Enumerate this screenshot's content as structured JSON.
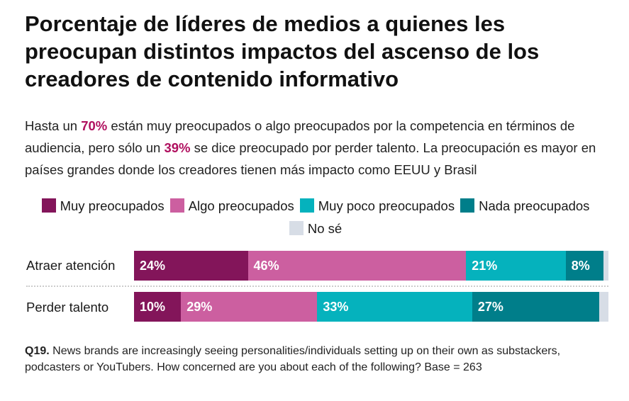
{
  "chart_data": {
    "type": "bar",
    "orientation": "horizontal",
    "stacked": true,
    "title": "Porcentaje de líderes de medios a quienes les preocupan distintos impactos del ascenso de los creadores de contenido informativo",
    "subtitle": {
      "p1": "Hasta un ",
      "h1": "70%",
      "p2": " están muy preocupados o algo preocupados por la competencia en términos de audiencia, pero sólo un ",
      "h2": "39%",
      "p3": " se dice preocupado por perder talento. La preocupación es mayor en países grandes donde los creadores tienen más impacto como EEUU y Brasil"
    },
    "categories": [
      "Atraer atención",
      "Perder talento"
    ],
    "series": [
      {
        "name": "Muy preocupados",
        "color": "#83155a",
        "values": [
          24,
          10
        ]
      },
      {
        "name": "Algo preocupados",
        "color": "#cc5fa0",
        "values": [
          46,
          29
        ]
      },
      {
        "name": "Muy poco preocupados",
        "color": "#05b2bd",
        "values": [
          21,
          33
        ]
      },
      {
        "name": "Nada preocupados",
        "color": "#007e8a",
        "values": [
          8,
          27
        ]
      },
      {
        "name": "No sé",
        "color": "#d7dde6",
        "values": [
          1,
          2
        ]
      }
    ],
    "labels": [
      [
        "24%",
        "46%",
        "21%",
        "8%",
        ""
      ],
      [
        "10%",
        "29%",
        "33%",
        "27%",
        ""
      ]
    ],
    "legend_position": "top",
    "note": {
      "bold": "Q19.",
      "text": " News brands are increasingly seeing personalities/individuals setting up on their own as substackers, podcasters or YouTubers. How concerned are you about each of the following? Base = 263"
    }
  }
}
